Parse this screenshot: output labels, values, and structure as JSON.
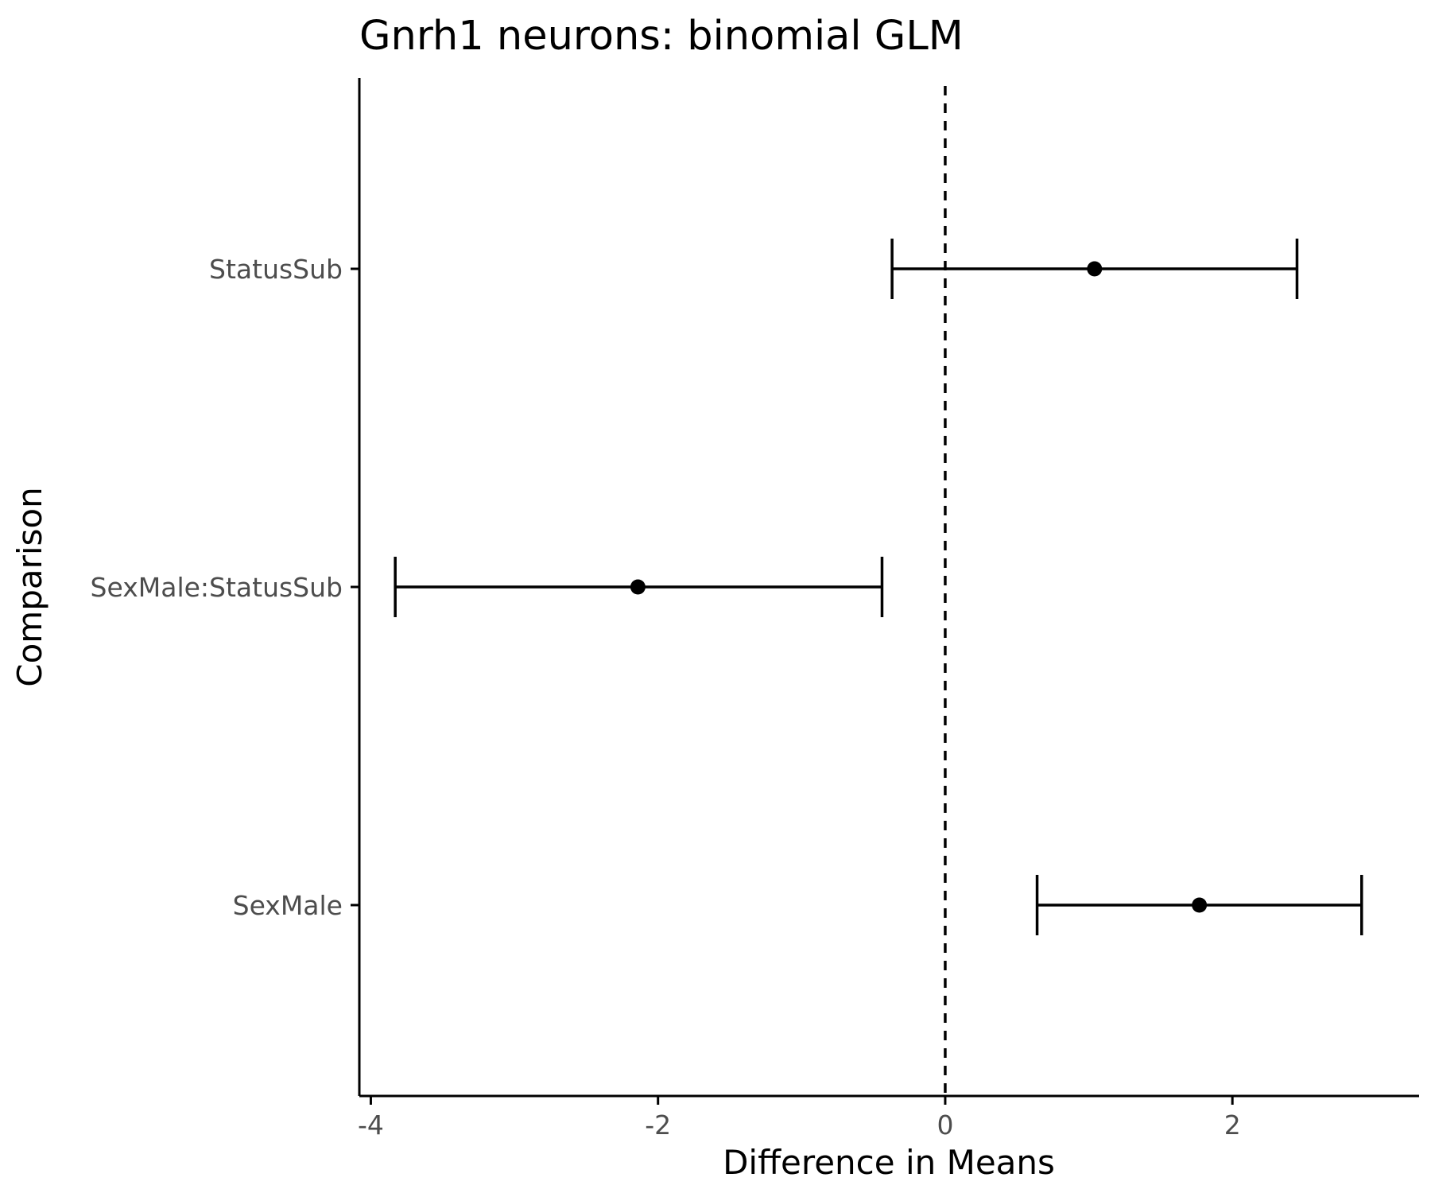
{
  "chart_data": {
    "type": "errorbar",
    "title": "Gnrh1 neurons: binomial GLM",
    "xlabel": "Difference in Means",
    "ylabel": "Comparison",
    "xlim": [
      -4.08,
      3.3
    ],
    "x_ticks": [
      -4,
      -2,
      0,
      2
    ],
    "x_tick_labels": [
      "-4",
      "-2",
      "0",
      "2"
    ],
    "reference_line": {
      "x": 0,
      "style": "dashed"
    },
    "grid": false,
    "categories": [
      "StatusSub",
      "SexMale:StatusSub",
      "SexMale"
    ],
    "estimates": [
      1.04,
      -2.14,
      1.77
    ],
    "lower": [
      -0.37,
      -3.83,
      0.64
    ],
    "upper": [
      2.45,
      -0.44,
      2.9
    ],
    "colors": {
      "mark": "#000000",
      "tick_text": "#4d4d4d"
    }
  }
}
